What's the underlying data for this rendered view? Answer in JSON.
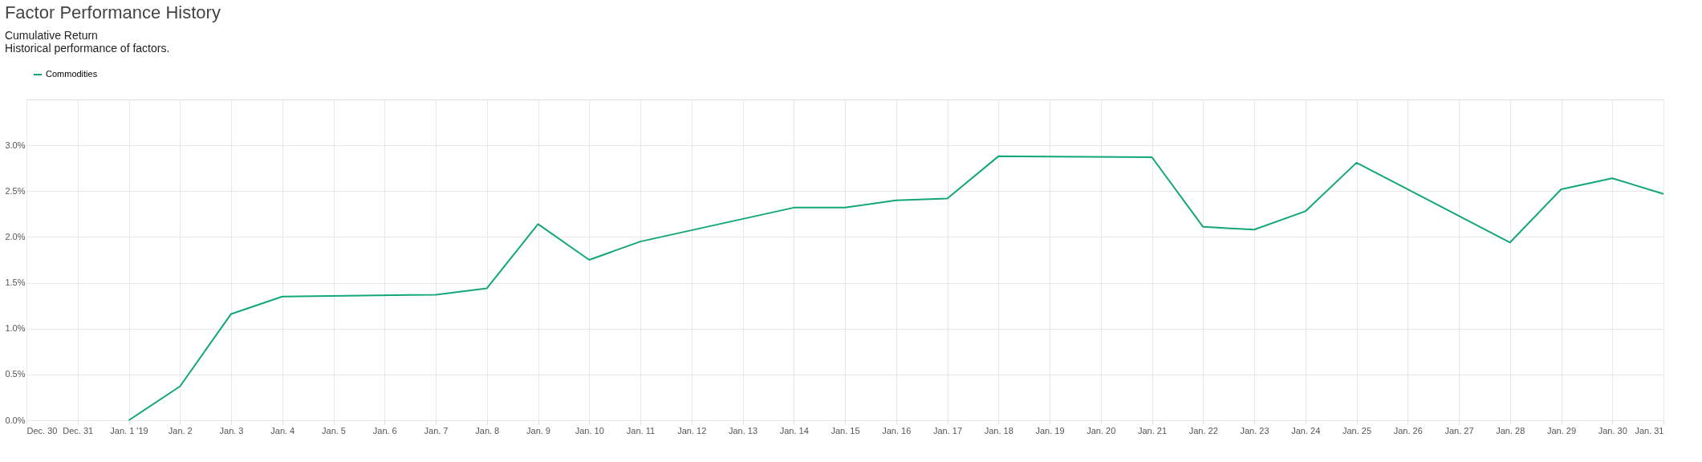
{
  "chart_data": {
    "type": "line",
    "title": "Factor Performance History",
    "subtitle": "Cumulative Return",
    "annotations": [
      "Historical performance of factors."
    ],
    "x": [
      "2019-01-01",
      "2019-01-02",
      "2019-01-03",
      "2019-01-04",
      "2019-01-07",
      "2019-01-08",
      "2019-01-09",
      "2019-01-10",
      "2019-01-11",
      "2019-01-14",
      "2019-01-15",
      "2019-01-16",
      "2019-01-17",
      "2019-01-18",
      "2019-01-21",
      "2019-01-22",
      "2019-01-23",
      "2019-01-24",
      "2019-01-25",
      "2019-01-28",
      "2019-01-29",
      "2019-01-30",
      "2019-01-31"
    ],
    "series": [
      {
        "name": "Commodities",
        "color": "#13a67a",
        "values": [
          0.0,
          0.37,
          1.16,
          1.35,
          1.37,
          1.44,
          2.14,
          1.75,
          1.95,
          2.32,
          2.32,
          2.4,
          2.42,
          2.88,
          2.87,
          2.11,
          2.08,
          2.28,
          2.81,
          1.94,
          2.52,
          2.64,
          2.47
        ]
      }
    ],
    "xlim": [
      "2018-12-30",
      "2019-01-31"
    ],
    "xticks": [
      {
        "value": "2018-12-30",
        "label": "Dec. 30"
      },
      {
        "value": "2018-12-31",
        "label": "Dec. 31"
      },
      {
        "value": "2019-01-01",
        "label": "Jan. 1 '19"
      },
      {
        "value": "2019-01-02",
        "label": "Jan. 2"
      },
      {
        "value": "2019-01-03",
        "label": "Jan. 3"
      },
      {
        "value": "2019-01-04",
        "label": "Jan. 4"
      },
      {
        "value": "2019-01-05",
        "label": "Jan. 5"
      },
      {
        "value": "2019-01-06",
        "label": "Jan. 6"
      },
      {
        "value": "2019-01-07",
        "label": "Jan. 7"
      },
      {
        "value": "2019-01-08",
        "label": "Jan. 8"
      },
      {
        "value": "2019-01-09",
        "label": "Jan. 9"
      },
      {
        "value": "2019-01-10",
        "label": "Jan. 10"
      },
      {
        "value": "2019-01-11",
        "label": "Jan. 11"
      },
      {
        "value": "2019-01-12",
        "label": "Jan. 12"
      },
      {
        "value": "2019-01-13",
        "label": "Jan. 13"
      },
      {
        "value": "2019-01-14",
        "label": "Jan. 14"
      },
      {
        "value": "2019-01-15",
        "label": "Jan. 15"
      },
      {
        "value": "2019-01-16",
        "label": "Jan. 16"
      },
      {
        "value": "2019-01-17",
        "label": "Jan. 17"
      },
      {
        "value": "2019-01-18",
        "label": "Jan. 18"
      },
      {
        "value": "2019-01-19",
        "label": "Jan. 19"
      },
      {
        "value": "2019-01-20",
        "label": "Jan. 20"
      },
      {
        "value": "2019-01-21",
        "label": "Jan. 21"
      },
      {
        "value": "2019-01-22",
        "label": "Jan. 22"
      },
      {
        "value": "2019-01-23",
        "label": "Jan. 23"
      },
      {
        "value": "2019-01-24",
        "label": "Jan. 24"
      },
      {
        "value": "2019-01-25",
        "label": "Jan. 25"
      },
      {
        "value": "2019-01-26",
        "label": "Jan. 26"
      },
      {
        "value": "2019-01-27",
        "label": "Jan. 27"
      },
      {
        "value": "2019-01-28",
        "label": "Jan. 28"
      },
      {
        "value": "2019-01-29",
        "label": "Jan. 29"
      },
      {
        "value": "2019-01-30",
        "label": "Jan. 30"
      },
      {
        "value": "2019-01-31",
        "label": "Jan. 31"
      }
    ],
    "ylim": [
      0,
      3.5
    ],
    "yticks": [
      {
        "value": 0,
        "label": "0.0%"
      },
      {
        "value": 0.5,
        "label": "0.5%"
      },
      {
        "value": 1,
        "label": "1.0%"
      },
      {
        "value": 1.5,
        "label": "1.5%"
      },
      {
        "value": 2,
        "label": "2.0%"
      },
      {
        "value": 2.5,
        "label": "2.5%"
      },
      {
        "value": 3,
        "label": "3.0%"
      }
    ],
    "grid": true,
    "legend": "top left",
    "marker": "none",
    "line_style": "solid"
  }
}
